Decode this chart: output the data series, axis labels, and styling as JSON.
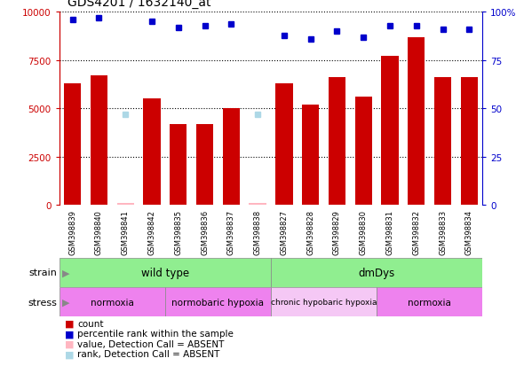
{
  "title": "GDS4201 / 1632140_at",
  "samples": [
    "GSM398839",
    "GSM398840",
    "GSM398841",
    "GSM398842",
    "GSM398835",
    "GSM398836",
    "GSM398837",
    "GSM398838",
    "GSM398827",
    "GSM398828",
    "GSM398829",
    "GSM398830",
    "GSM398831",
    "GSM398832",
    "GSM398833",
    "GSM398834"
  ],
  "counts": [
    6300,
    6700,
    100,
    5500,
    4200,
    4200,
    5000,
    100,
    6300,
    5200,
    6600,
    5600,
    7700,
    8700,
    6600,
    6600
  ],
  "counts_absent": [
    false,
    false,
    true,
    false,
    false,
    false,
    false,
    true,
    false,
    false,
    false,
    false,
    false,
    false,
    false,
    false
  ],
  "percentile_ranks": [
    96,
    97,
    null,
    95,
    92,
    93,
    94,
    null,
    88,
    86,
    90,
    87,
    93,
    93,
    91,
    91
  ],
  "percentile_ranks_absent": [
    false,
    false,
    false,
    false,
    false,
    false,
    false,
    false,
    false,
    false,
    false,
    false,
    false,
    false,
    false,
    false
  ],
  "absent_rank_vals": [
    null,
    null,
    47,
    null,
    null,
    null,
    null,
    47,
    null,
    null,
    null,
    null,
    null,
    null,
    null,
    null
  ],
  "ylim_left": [
    0,
    10000
  ],
  "ylim_right": [
    0,
    100
  ],
  "yticks_left": [
    0,
    2500,
    5000,
    7500,
    10000
  ],
  "yticks_right": [
    0,
    25,
    50,
    75,
    100
  ],
  "strain_groups": [
    {
      "label": "wild type",
      "start": 0,
      "end": 8,
      "color": "#90EE90"
    },
    {
      "label": "dmDys",
      "start": 8,
      "end": 16,
      "color": "#90EE90"
    }
  ],
  "stress_groups": [
    {
      "label": "normoxia",
      "start": 0,
      "end": 4,
      "color": "#EE82EE"
    },
    {
      "label": "normobaric hypoxia",
      "start": 4,
      "end": 8,
      "color": "#EE82EE"
    },
    {
      "label": "chronic hypobaric hypoxia",
      "start": 8,
      "end": 12,
      "color": "#F5C8F5"
    },
    {
      "label": "normoxia",
      "start": 12,
      "end": 16,
      "color": "#EE82EE"
    }
  ],
  "bar_color": "#CC0000",
  "bar_absent_color": "#FFB6C1",
  "dot_color": "#0000CC",
  "dot_absent_color": "#ADD8E6",
  "bg_color": "#C8C8C8",
  "plot_bg": "#FFFFFF",
  "left_axis_color": "#CC0000",
  "right_axis_color": "#0000CC"
}
